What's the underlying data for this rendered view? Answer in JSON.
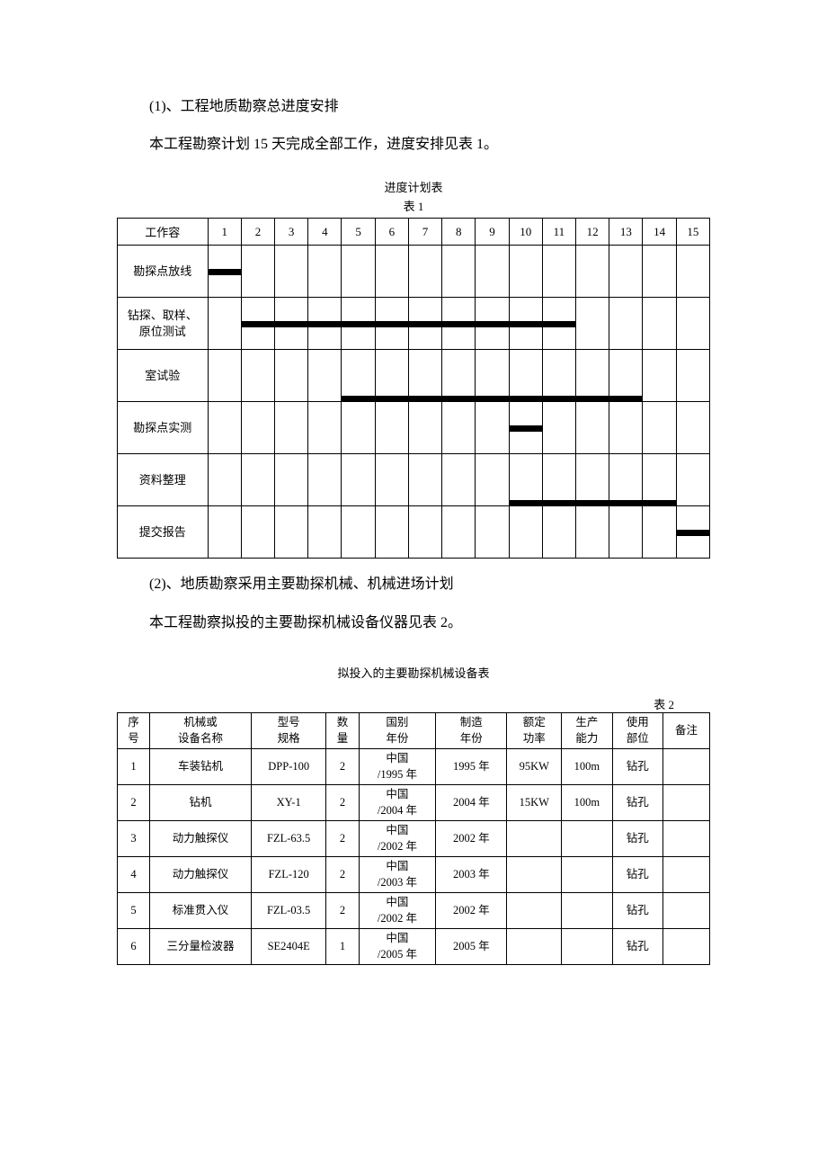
{
  "paragraphs": {
    "p1": "(1)、工程地质勘察总进度安排",
    "p2": "本工程勘察计划 15 天完成全部工作，进度安排见表 1。",
    "p3": "(2)、地质勘察采用主要勘探机械、机械进场计划",
    "p4": "本工程勘察拟投的主要勘探机械设备仪器见表 2。"
  },
  "gantt": {
    "title": "进度计划表",
    "table_label": "表 1",
    "label_header": "工作容",
    "days": [
      "1",
      "2",
      "3",
      "4",
      "5",
      "6",
      "7",
      "8",
      "9",
      "10",
      "11",
      "12",
      "13",
      "14",
      "15"
    ],
    "rows": [
      {
        "label": "勘探点放线",
        "start": 1,
        "end": 1,
        "pos": "mid"
      },
      {
        "label": "钻探、取样、\n原位测试",
        "start": 2,
        "end": 11,
        "pos": "mid"
      },
      {
        "label": "室试验",
        "start": 5,
        "end": 13,
        "pos": "bottom"
      },
      {
        "label": "勘探点实测",
        "start": 10,
        "end": 10,
        "pos": "mid"
      },
      {
        "label": "资料整理",
        "start": 10,
        "end": 14,
        "pos": "bottom"
      },
      {
        "label": "提交报告",
        "start": 15,
        "end": 15,
        "pos": "mid"
      }
    ],
    "bar_color": "#000000"
  },
  "equipment": {
    "title": "拟投入的主要勘探机械设备表",
    "table_label": "表 2",
    "columns": {
      "idx": "序\n号",
      "name": "机械或\n设备名称",
      "model": "型号\n规格",
      "qty": "数\n量",
      "origin": "国别\n年份",
      "mfg": "制造\n年份",
      "power": "额定\n功率",
      "cap": "生产\n能力",
      "use": "使用\n部位",
      "note": "备注"
    },
    "rows": [
      {
        "idx": "1",
        "name": "车装钻机",
        "model": "DPP-100",
        "qty": "2",
        "origin": "中国\n/1995 年",
        "mfg": "1995 年",
        "power": "95KW",
        "cap": "100m",
        "use": "钻孔",
        "note": ""
      },
      {
        "idx": "2",
        "name": "钻机",
        "model": "XY-1",
        "qty": "2",
        "origin": "中国\n/2004 年",
        "mfg": "2004 年",
        "power": "15KW",
        "cap": "100m",
        "use": "钻孔",
        "note": ""
      },
      {
        "idx": "3",
        "name": "动力触探仪",
        "model": "FZL-63.5",
        "qty": "2",
        "origin": "中国\n/2002 年",
        "mfg": "2002 年",
        "power": "",
        "cap": "",
        "use": "钻孔",
        "note": ""
      },
      {
        "idx": "4",
        "name": "动力触探仪",
        "model": "FZL-120",
        "qty": "2",
        "origin": "中国\n/2003 年",
        "mfg": "2003 年",
        "power": "",
        "cap": "",
        "use": "钻孔",
        "note": ""
      },
      {
        "idx": "5",
        "name": "标准贯入仪",
        "model": "FZL-03.5",
        "qty": "2",
        "origin": "中国\n/2002 年",
        "mfg": "2002 年",
        "power": "",
        "cap": "",
        "use": "钻孔",
        "note": ""
      },
      {
        "idx": "6",
        "name": "三分量检波器",
        "model": "SE2404E",
        "qty": "1",
        "origin": "中国\n/2005 年",
        "mfg": "2005 年",
        "power": "",
        "cap": "",
        "use": "钻孔",
        "note": ""
      }
    ]
  }
}
